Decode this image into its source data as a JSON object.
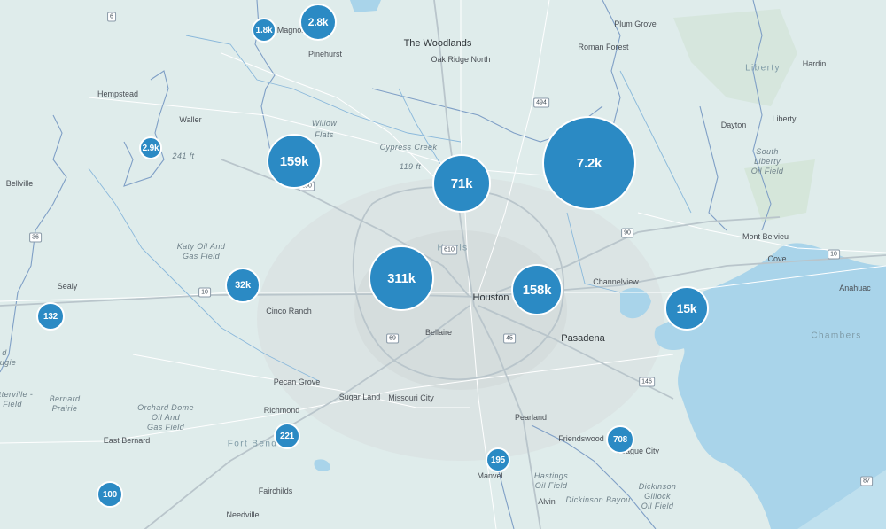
{
  "places": [
    {
      "id": "plum-grove",
      "label": "Plum Grove"
    },
    {
      "id": "the-woodlands",
      "label": "The Woodlands"
    },
    {
      "id": "roman-forest",
      "label": "Roman Forest"
    },
    {
      "id": "oak-ridge-north",
      "label": "Oak Ridge North"
    },
    {
      "id": "magnolia",
      "label": "Magnolia"
    },
    {
      "id": "pinehurst",
      "label": "Pinehurst"
    },
    {
      "id": "hempstead",
      "label": "Hempstead"
    },
    {
      "id": "waller",
      "label": "Waller"
    },
    {
      "id": "willow",
      "label": "Willow"
    },
    {
      "id": "flats",
      "label": "Flats"
    },
    {
      "id": "liberty-region",
      "label": "Liberty"
    },
    {
      "id": "hardin",
      "label": "Hardin"
    },
    {
      "id": "dayton",
      "label": "Dayton"
    },
    {
      "id": "liberty-city",
      "label": "Liberty"
    },
    {
      "id": "south",
      "label": "South"
    },
    {
      "id": "liberty-of",
      "label": "Liberty"
    },
    {
      "id": "oil-field-liberty",
      "label": "Oil Field"
    },
    {
      "id": "bellville",
      "label": "Bellville"
    },
    {
      "id": "cypress-creek",
      "label": "Cypress Creek"
    },
    {
      "id": "elev-241",
      "label": "241 ft"
    },
    {
      "id": "elev-119",
      "label": "119 ft"
    },
    {
      "id": "harris",
      "label": "Harris"
    },
    {
      "id": "katy-oil-and",
      "label": "Katy Oil And"
    },
    {
      "id": "gas-field-katy",
      "label": "Gas Field"
    },
    {
      "id": "mont-belvieu",
      "label": "Mont Belvieu"
    },
    {
      "id": "cove",
      "label": "Cove"
    },
    {
      "id": "sealy",
      "label": "Sealy"
    },
    {
      "id": "houston",
      "label": "Houston"
    },
    {
      "id": "channelview",
      "label": "Channelview"
    },
    {
      "id": "anahuac",
      "label": "Anahuac"
    },
    {
      "id": "cinco-ranch",
      "label": "Cinco Ranch"
    },
    {
      "id": "bellaire",
      "label": "Bellaire"
    },
    {
      "id": "pasadena",
      "label": "Pasadena"
    },
    {
      "id": "chambers",
      "label": "Chambers"
    },
    {
      "id": "pecan-grove",
      "label": "Pecan Grove"
    },
    {
      "id": "sugar-land",
      "label": "Sugar Land"
    },
    {
      "id": "missouri-city",
      "label": "Missouri City"
    },
    {
      "id": "bernard",
      "label": "Bernard"
    },
    {
      "id": "prairie",
      "label": "Prairie"
    },
    {
      "id": "orchard-dome",
      "label": "Orchard Dome"
    },
    {
      "id": "oil-and",
      "label": "Oil And"
    },
    {
      "id": "gas-field-orchard",
      "label": "Gas Field"
    },
    {
      "id": "richmond",
      "label": "Richmond"
    },
    {
      "id": "pearland",
      "label": "Pearland"
    },
    {
      "id": "friendswood",
      "label": "Friendswood"
    },
    {
      "id": "east-bernard",
      "label": "East Bernard"
    },
    {
      "id": "fort-bend",
      "label": "Fort Bend"
    },
    {
      "id": "league-city",
      "label": "League City"
    },
    {
      "id": "manvel",
      "label": "Manvel"
    },
    {
      "id": "hastings",
      "label": "Hastings"
    },
    {
      "id": "oil-field-hastings",
      "label": "Oil Field"
    },
    {
      "id": "dickinson",
      "label": "Dickinson"
    },
    {
      "id": "gillock",
      "label": "Gillock"
    },
    {
      "id": "oil-field-dickinson",
      "label": "Oil Field"
    },
    {
      "id": "fairchilds",
      "label": "Fairchilds"
    },
    {
      "id": "alvin",
      "label": "Alvin"
    },
    {
      "id": "dickinson-bayou",
      "label": "Dickinson Bayou"
    },
    {
      "id": "needville",
      "label": "Needville"
    },
    {
      "id": "terville",
      "label": "tterville -"
    },
    {
      "id": "field-edge",
      "label": "Field"
    },
    {
      "id": "ugie",
      "label": "ugie"
    },
    {
      "id": "d-edge",
      "label": "d"
    }
  ],
  "highways": [
    {
      "id": "shield-6",
      "label": "6"
    },
    {
      "id": "shield-494",
      "label": "494"
    },
    {
      "id": "shield-290",
      "label": "290"
    },
    {
      "id": "shield-36",
      "label": "36"
    },
    {
      "id": "shield-90",
      "label": "90"
    },
    {
      "id": "shield-10-east",
      "label": "10"
    },
    {
      "id": "shield-610",
      "label": "610"
    },
    {
      "id": "shield-10-west",
      "label": "10"
    },
    {
      "id": "shield-69",
      "label": "69"
    },
    {
      "id": "shield-45",
      "label": "45"
    },
    {
      "id": "shield-146",
      "label": "146"
    },
    {
      "id": "shield-87",
      "label": "87"
    }
  ],
  "clusters": [
    {
      "id": "cluster-magnolia-1-8k",
      "label": "1.8k",
      "count": 1800
    },
    {
      "id": "cluster-magnolia-2-8k",
      "label": "2.8k",
      "count": 2800
    },
    {
      "id": "cluster-waller-2-9k",
      "label": "2.9k",
      "count": 2900
    },
    {
      "id": "cluster-cypress-159k",
      "label": "159k",
      "count": 159000
    },
    {
      "id": "cluster-north-71k",
      "label": "71k",
      "count": 71000
    },
    {
      "id": "cluster-humble-7-2k",
      "label": "7.2k",
      "count": 7200
    },
    {
      "id": "cluster-west-houston-311k",
      "label": "311k",
      "count": 311000
    },
    {
      "id": "cluster-east-houston-158k",
      "label": "158k",
      "count": 158000
    },
    {
      "id": "cluster-katy-32k",
      "label": "32k",
      "count": 32000
    },
    {
      "id": "cluster-baytown-15k",
      "label": "15k",
      "count": 15000
    },
    {
      "id": "cluster-sealy-132",
      "label": "132",
      "count": 132
    },
    {
      "id": "cluster-richmond-221",
      "label": "221",
      "count": 221
    },
    {
      "id": "cluster-league-city-708",
      "label": "708",
      "count": 708
    },
    {
      "id": "cluster-manvel-195",
      "label": "195",
      "count": 195
    },
    {
      "id": "cluster-wharton-100",
      "label": "100",
      "count": 100
    }
  ],
  "colors": {
    "cluster": "#2b8ac4",
    "land": "#dfeceb",
    "water": "#a9d4ea",
    "county_line": "#7f9fc6"
  }
}
